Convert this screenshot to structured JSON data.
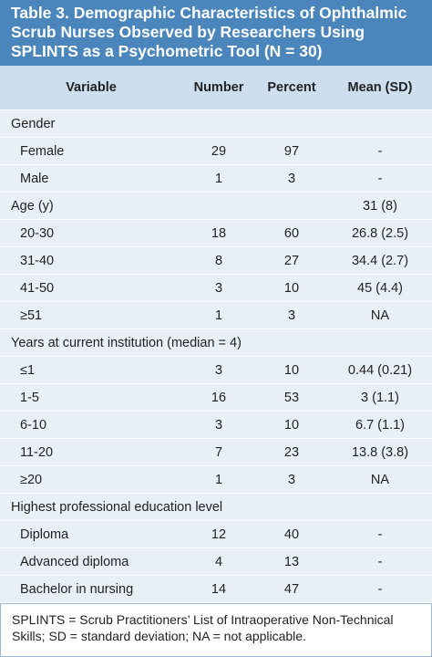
{
  "title": "Table 3. Demographic Characteristics of Ophthalmic Scrub Nurses Observed by Researchers Using SPLINTS as a Psychometric Tool (N = 30)",
  "header": [
    "Variable",
    "Number",
    "Percent",
    "Mean (SD)"
  ],
  "sections": [
    {
      "label": "Gender",
      "rows": [
        [
          "Female",
          "29",
          "97",
          "-"
        ],
        [
          "Male",
          "1",
          "3",
          "-"
        ]
      ]
    },
    {
      "label": "Age (y)",
      "mean": "31 (8)",
      "rows": [
        [
          "20-30",
          "18",
          "60",
          "26.8 (2.5)"
        ],
        [
          "31-40",
          "8",
          "27",
          "34.4 (2.7)"
        ],
        [
          "41-50",
          "3",
          "10",
          "45 (4.4)"
        ],
        [
          "≥51",
          "1",
          "3",
          "NA"
        ]
      ]
    },
    {
      "label": "Years at current institution (median = 4)",
      "rows": [
        [
          "≤1",
          "3",
          "10",
          "0.44 (0.21)"
        ],
        [
          "1-5",
          "16",
          "53",
          "3 (1.1)"
        ],
        [
          "6-10",
          "3",
          "10",
          "6.7 (1.1)"
        ],
        [
          "11-20",
          "7",
          "23",
          "13.8 (3.8)"
        ],
        [
          "≥20",
          "1",
          "3",
          "NA"
        ]
      ]
    },
    {
      "label": "Highest professional education level",
      "rows": [
        [
          "Diploma",
          "12",
          "40",
          "-"
        ],
        [
          "Advanced diploma",
          "4",
          "13",
          "-"
        ],
        [
          "Bachelor in nursing",
          "14",
          "47",
          "-"
        ]
      ]
    }
  ],
  "footnote": "SPLINTS = Scrub Practitioners’ List of Intraoperative Non-Technical Skills; SD = standard deviation; NA = not applicable."
}
